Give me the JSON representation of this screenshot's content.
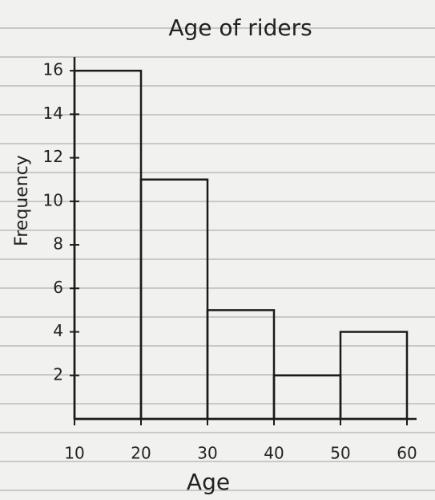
{
  "chart_data": {
    "type": "histogram",
    "title": "Age of riders",
    "x_label": "Age",
    "y_label": "Frequency",
    "bins": [
      10,
      20,
      30,
      40,
      50,
      60
    ],
    "values": [
      16,
      11,
      5,
      2,
      4
    ],
    "color": "#1b1b1b",
    "xlim": [
      10,
      60
    ],
    "xticks": [
      10,
      20,
      30,
      40,
      50,
      60
    ],
    "ylim": [
      0,
      17
    ],
    "yticks": [
      2,
      4,
      6,
      8,
      10,
      12,
      14,
      16
    ],
    "grid": false
  }
}
